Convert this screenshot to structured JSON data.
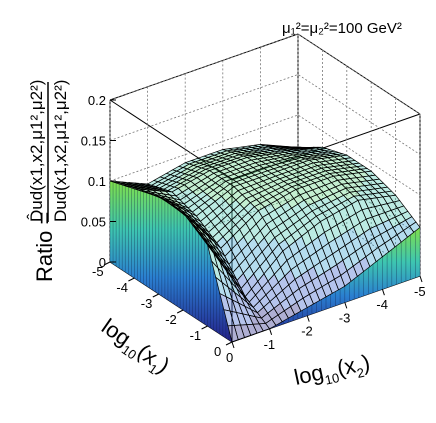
{
  "chart_data": {
    "type": "surface3d",
    "title": "μ₁²=μ₂²=100 GeV²",
    "xlabel": {
      "base": "log",
      "sub": "10",
      "arg": "x",
      "argsub": "1"
    },
    "ylabel": {
      "base": "log",
      "sub": "10",
      "arg": "x",
      "argsub": "2"
    },
    "zlabel": {
      "prefix": "Ratio =",
      "numerator": "D̂ud(x1,x2,μ1²,μ2²)",
      "denominator": "Dud(x1,x2,μ1²,μ2²)"
    },
    "x_range": [
      -5,
      0
    ],
    "y_range": [
      -5,
      0
    ],
    "z_range": [
      0,
      0.2
    ],
    "x_ticks": [
      "-5",
      "-4",
      "-3",
      "-2",
      "-1",
      "0"
    ],
    "y_ticks": [
      "0",
      "-1",
      "-2",
      "-3",
      "-4",
      "-5"
    ],
    "z_ticks": [
      "0",
      "0.05",
      "0.1",
      "0.15",
      "0.2"
    ],
    "grid": true,
    "colormap": [
      "#1a1a80",
      "#2a57c8",
      "#2a9fd0",
      "#3ec6b0",
      "#57d07a",
      "#7fe04a"
    ],
    "surface_samples": {
      "log10_x1": [
        -5,
        -4,
        -3,
        -2,
        -1,
        0
      ],
      "log10_x2": [
        -5,
        -4,
        -3,
        -2,
        -1,
        0
      ],
      "ratio": [
        [
          0.06,
          0.08,
          0.09,
          0.09,
          0.08,
          0.1
        ],
        [
          0.08,
          0.09,
          0.1,
          0.1,
          0.09,
          0.11
        ],
        [
          0.09,
          0.1,
          0.1,
          0.1,
          0.08,
          0.12
        ],
        [
          0.09,
          0.1,
          0.1,
          0.09,
          0.06,
          0.12
        ],
        [
          0.08,
          0.09,
          0.08,
          0.06,
          0.02,
          0.1
        ],
        [
          0.06,
          0.04,
          0.02,
          0.01,
          0.0,
          0.0
        ]
      ]
    }
  }
}
